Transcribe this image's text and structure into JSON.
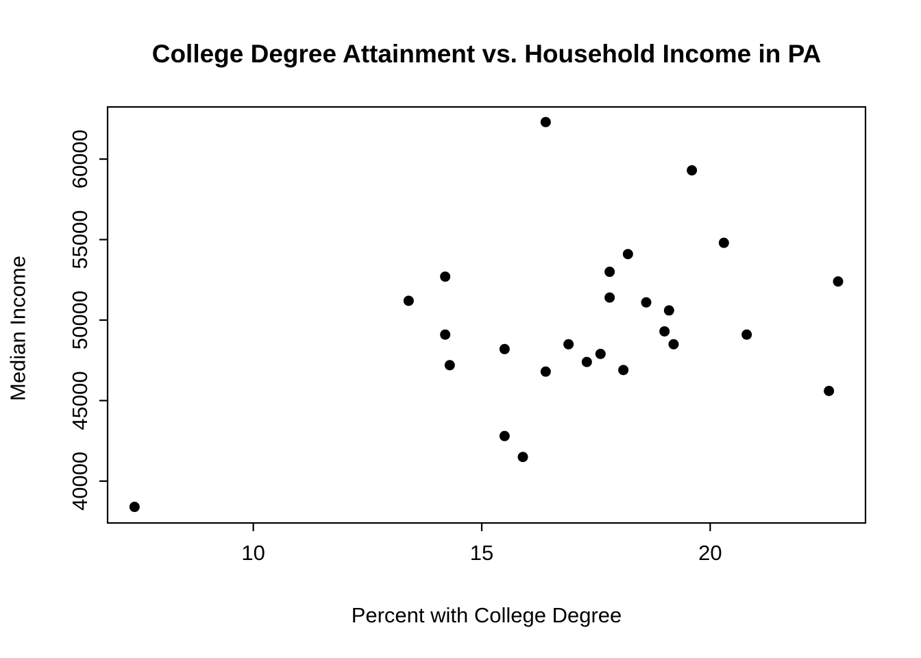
{
  "colors": {
    "background": "#ffffff",
    "foreground": "#000000",
    "marker": "#000000"
  },
  "chart_data": {
    "type": "scatter",
    "title": "College Degree Attainment vs. Household Income in PA",
    "xlabel": "Percent with College Degree",
    "ylabel": "Median Income",
    "xlim": [
      6.81,
      23.4
    ],
    "ylim": [
      37400,
      63240
    ],
    "x_ticks": [
      10,
      15,
      20
    ],
    "y_ticks": [
      40000,
      45000,
      50000,
      55000,
      60000
    ],
    "grid": false,
    "legend_position": "none",
    "marker": {
      "shape": "filled-circle",
      "color": "#000000",
      "radius_px": 7.5
    },
    "points": [
      {
        "x": 7.4,
        "y": 38400
      },
      {
        "x": 13.4,
        "y": 51200
      },
      {
        "x": 14.2,
        "y": 52700
      },
      {
        "x": 14.2,
        "y": 49100
      },
      {
        "x": 14.3,
        "y": 47200
      },
      {
        "x": 15.5,
        "y": 48200
      },
      {
        "x": 15.5,
        "y": 42800
      },
      {
        "x": 15.9,
        "y": 41500
      },
      {
        "x": 16.4,
        "y": 62300
      },
      {
        "x": 16.4,
        "y": 46800
      },
      {
        "x": 16.9,
        "y": 48500
      },
      {
        "x": 17.3,
        "y": 47400
      },
      {
        "x": 17.6,
        "y": 47900
      },
      {
        "x": 17.8,
        "y": 53000
      },
      {
        "x": 17.8,
        "y": 51400
      },
      {
        "x": 18.1,
        "y": 46900
      },
      {
        "x": 18.2,
        "y": 54100
      },
      {
        "x": 18.6,
        "y": 51100
      },
      {
        "x": 19.0,
        "y": 49300
      },
      {
        "x": 19.1,
        "y": 50600
      },
      {
        "x": 19.2,
        "y": 48500
      },
      {
        "x": 19.6,
        "y": 59300
      },
      {
        "x": 20.3,
        "y": 54800
      },
      {
        "x": 20.8,
        "y": 49100
      },
      {
        "x": 22.6,
        "y": 45600
      },
      {
        "x": 22.8,
        "y": 52400
      }
    ]
  }
}
